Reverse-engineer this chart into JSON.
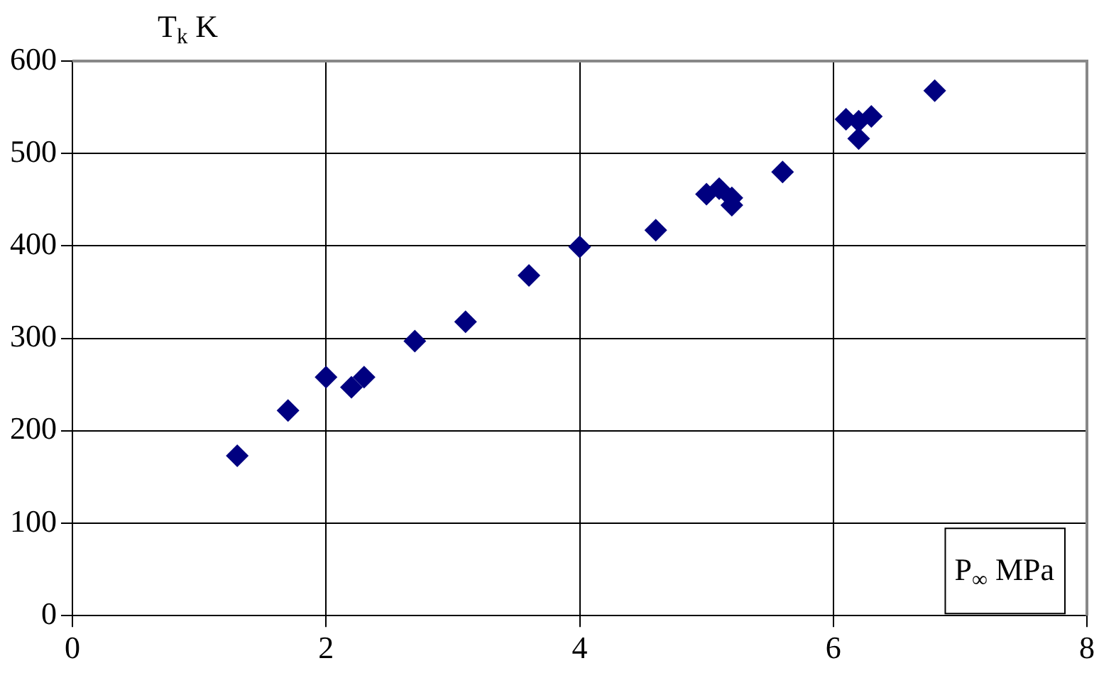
{
  "chart_data": {
    "type": "scatter",
    "xlabel": "P$_{∞}$ MPa",
    "ylabel": "T$_{k}$ K",
    "x": [
      1.3,
      1.7,
      2.0,
      2.2,
      2.3,
      2.7,
      3.1,
      3.6,
      4.0,
      4.6,
      5.0,
      5.1,
      5.2,
      5.2,
      5.6,
      6.1,
      6.2,
      6.2,
      6.3,
      6.8
    ],
    "series": [
      {
        "color": "#000080",
        "values": [
          173,
          222,
          258,
          247,
          258,
          297,
          318,
          368,
          399,
          417,
          456,
          462,
          452,
          444,
          480,
          537,
          535,
          516,
          540,
          568
        ]
      }
    ],
    "marker": "diamond",
    "grid": true,
    "legend": false,
    "xlim": [
      0,
      8
    ],
    "xticks": [
      0,
      2,
      4,
      6,
      8
    ],
    "ylim": [
      0,
      600
    ],
    "yticks": [
      0,
      100,
      200,
      300,
      400,
      500,
      600
    ]
  }
}
